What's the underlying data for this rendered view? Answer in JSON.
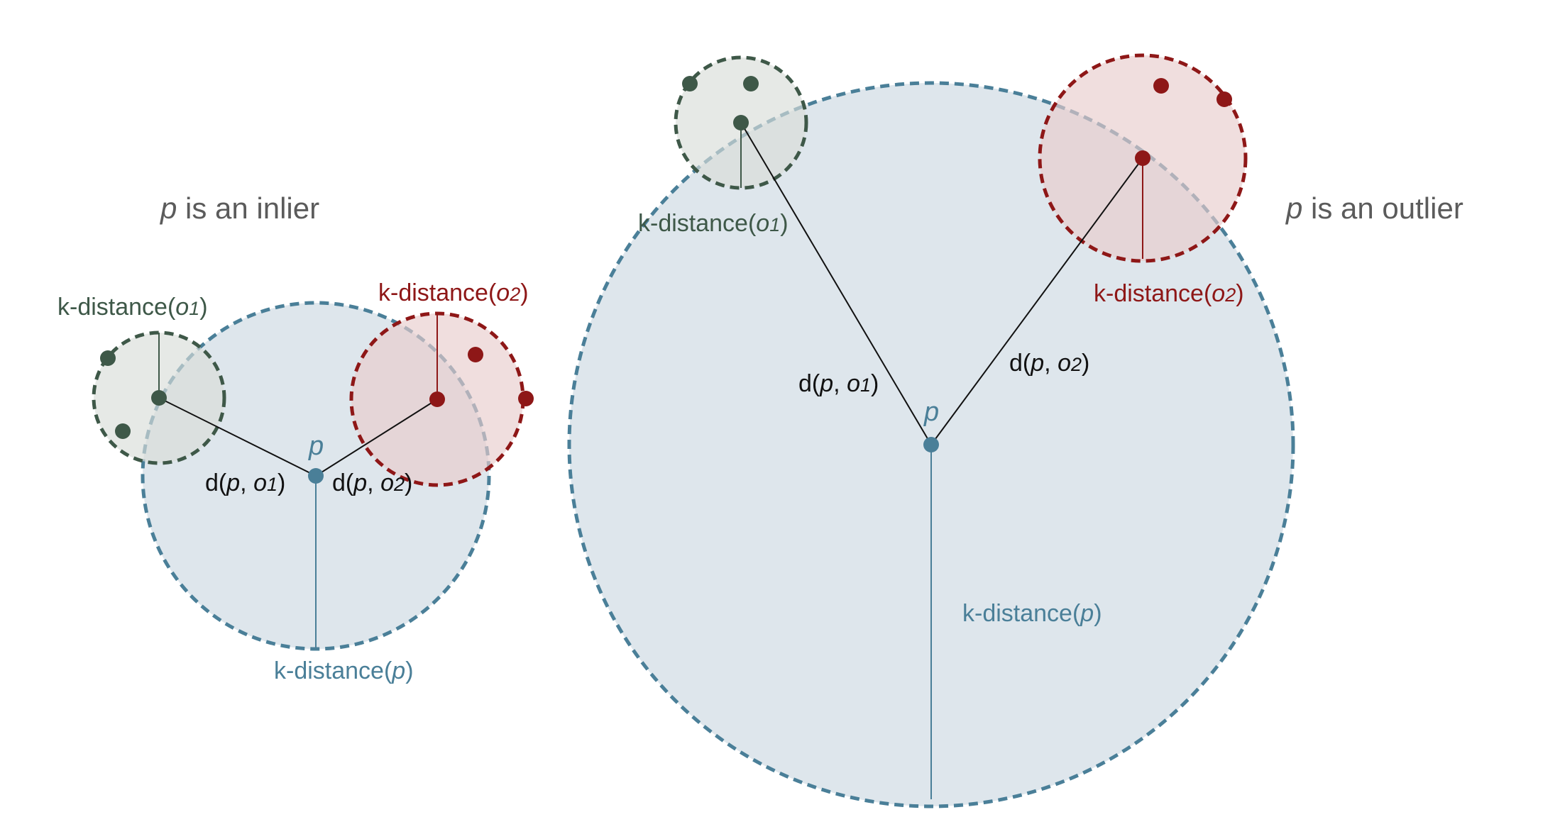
{
  "panels": {
    "inlier": {
      "title_var": "p",
      "title_rest": " is an inlier",
      "p_label": "p",
      "kdist_p": {
        "prefix": "k-distance(",
        "var": "p",
        "suffix": ")"
      },
      "kdist_o1": {
        "prefix": "k-distance(",
        "var": "o",
        "sub": "1",
        "suffix": ")"
      },
      "kdist_o2": {
        "prefix": "k-distance(",
        "var": "o",
        "sub": "2",
        "suffix": ")"
      },
      "d_o1": {
        "d": "d(",
        "p": "p",
        "sep": ", ",
        "o": "o",
        "sub": "1",
        "close": ")"
      },
      "d_o2": {
        "d": "d(",
        "p": "p",
        "sep": ", ",
        "o": "o",
        "sub": "2",
        "close": ")"
      }
    },
    "outlier": {
      "title_var": "p",
      "title_rest": " is an outlier",
      "p_label": "p",
      "kdist_p": {
        "prefix": "k-distance(",
        "var": "p",
        "suffix": ")"
      },
      "kdist_o1": {
        "prefix": "k-distance(",
        "var": "o",
        "sub": "1",
        "suffix": ")"
      },
      "kdist_o2": {
        "prefix": "k-distance(",
        "var": "o",
        "sub": "2",
        "suffix": ")"
      },
      "d_o1": {
        "d": "d(",
        "p": "p",
        "sep": ", ",
        "o": "o",
        "sub": "1",
        "close": ")"
      },
      "d_o2": {
        "d": "d(",
        "p": "p",
        "sep": ", ",
        "o": "o",
        "sub": "2",
        "close": ")"
      }
    }
  },
  "colors": {
    "p_blue": "#4a7f98",
    "o1_green": "#3e5848",
    "o2_red": "#8e1717",
    "p_fill": "#dbe4ea",
    "o1_fill": "#d9ddd8",
    "o2_fill": "#e8cccc"
  }
}
